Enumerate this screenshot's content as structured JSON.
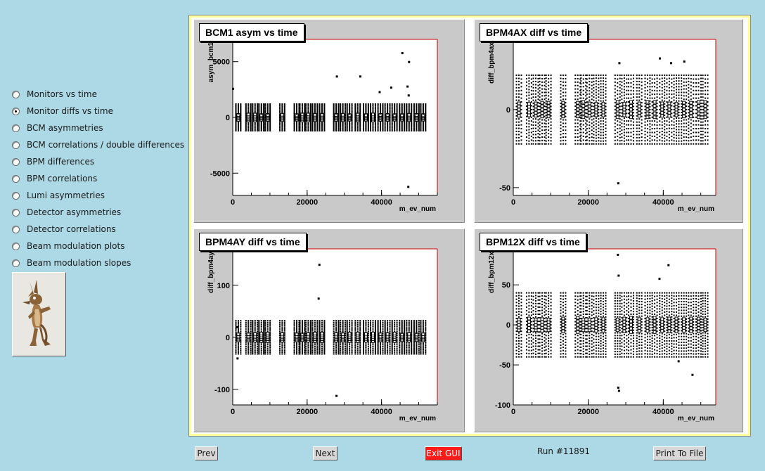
{
  "menu": {
    "items": [
      {
        "label": "Monitors vs time",
        "selected": false
      },
      {
        "label": "Monitor diffs vs time",
        "selected": true
      },
      {
        "label": "BCM asymmetries",
        "selected": false
      },
      {
        "label": "BCM correlations / double differences",
        "selected": false
      },
      {
        "label": "BPM differences",
        "selected": false
      },
      {
        "label": "BPM correlations",
        "selected": false
      },
      {
        "label": "Lumi asymmetries",
        "selected": false
      },
      {
        "label": "Detector asymmetries",
        "selected": false
      },
      {
        "label": "Detector correlations",
        "selected": false
      },
      {
        "label": "Beam modulation plots",
        "selected": false
      },
      {
        "label": "Beam modulation slopes",
        "selected": false
      }
    ]
  },
  "logo": {
    "icon": "coyote-cartoon-logo"
  },
  "colors": {
    "background": "#add8e6",
    "canvas_border": "#ffff99",
    "pad": "#c9c9c9",
    "exit": "#ff1a1a",
    "frame_right": "#cc0000"
  },
  "buttons": {
    "prev": "Prev",
    "next": "Next",
    "exit": "Exit GUI",
    "print": "Print To File"
  },
  "status": {
    "run": "Run #11891"
  },
  "chart_data": [
    {
      "type": "scatter",
      "title": "BCM1 asym vs time",
      "xlabel": "m_ev_num",
      "ylabel": "asym_bcm1",
      "xlim": [
        0,
        55000
      ],
      "ylim": [
        -7000,
        7000
      ],
      "xticks": [
        0,
        20000,
        40000
      ],
      "xtick_labels": [
        "0",
        "20000",
        "40000"
      ],
      "yticks": [
        -5000,
        0,
        5000
      ],
      "ytick_labels": [
        "-5000",
        "0",
        "5000"
      ],
      "core_spread": 1200,
      "outliers": [
        [
          0,
          2600
        ],
        [
          27900,
          3700
        ],
        [
          34200,
          3700
        ],
        [
          39400,
          2300
        ],
        [
          42500,
          2700
        ],
        [
          45500,
          5800
        ],
        [
          46900,
          2800
        ],
        [
          47300,
          5000
        ],
        [
          47200,
          2000
        ],
        [
          47100,
          -6200
        ]
      ]
    },
    {
      "type": "scatter",
      "title": "BPM4AX diff vs time",
      "xlabel": "m_ev_num",
      "ylabel": "diff_bpm4ax",
      "xlim": [
        0,
        54000
      ],
      "ylim": [
        -55,
        45
      ],
      "xticks": [
        0,
        20000,
        40000
      ],
      "xtick_labels": [
        "0",
        "20000",
        "40000"
      ],
      "yticks": [
        -50,
        0
      ],
      "ytick_labels": [
        "-50",
        "0"
      ],
      "core_spread": 22,
      "outliers": [
        [
          27900,
          -47
        ],
        [
          28200,
          30
        ],
        [
          39000,
          33
        ],
        [
          42000,
          30
        ],
        [
          45500,
          31
        ]
      ]
    },
    {
      "type": "scatter",
      "title": "BPM4AY diff vs time",
      "xlabel": "m_ev_num",
      "ylabel": "diff_bpm4ay",
      "xlim": [
        0,
        55000
      ],
      "ylim": [
        -130,
        170
      ],
      "xticks": [
        0,
        20000,
        40000
      ],
      "xtick_labels": [
        "0",
        "20000",
        "40000"
      ],
      "yticks": [
        -100,
        0,
        100
      ],
      "ytick_labels": [
        "-100",
        "0",
        "100"
      ],
      "core_spread": 32,
      "outliers": [
        [
          23200,
          140
        ],
        [
          23000,
          75
        ],
        [
          27800,
          -112
        ],
        [
          1000,
          20
        ],
        [
          1200,
          -40
        ]
      ]
    },
    {
      "type": "scatter",
      "title": "BPM12X diff vs time",
      "xlabel": "m_ev_num",
      "ylabel": "diff_bpm12x",
      "xlim": [
        0,
        54000
      ],
      "ylim": [
        -100,
        95
      ],
      "xticks": [
        0,
        20000,
        40000
      ],
      "xtick_labels": [
        "0",
        "20000",
        "40000"
      ],
      "yticks": [
        -100,
        -50,
        0,
        50
      ],
      "ytick_labels": [
        "-100",
        "-50",
        "0",
        "50"
      ],
      "core_spread": 40,
      "outliers": [
        [
          27800,
          88
        ],
        [
          28000,
          62
        ],
        [
          27900,
          -78
        ],
        [
          28100,
          -82
        ],
        [
          41300,
          75
        ],
        [
          38900,
          58
        ],
        [
          47700,
          -62
        ],
        [
          44000,
          -45
        ]
      ]
    }
  ]
}
